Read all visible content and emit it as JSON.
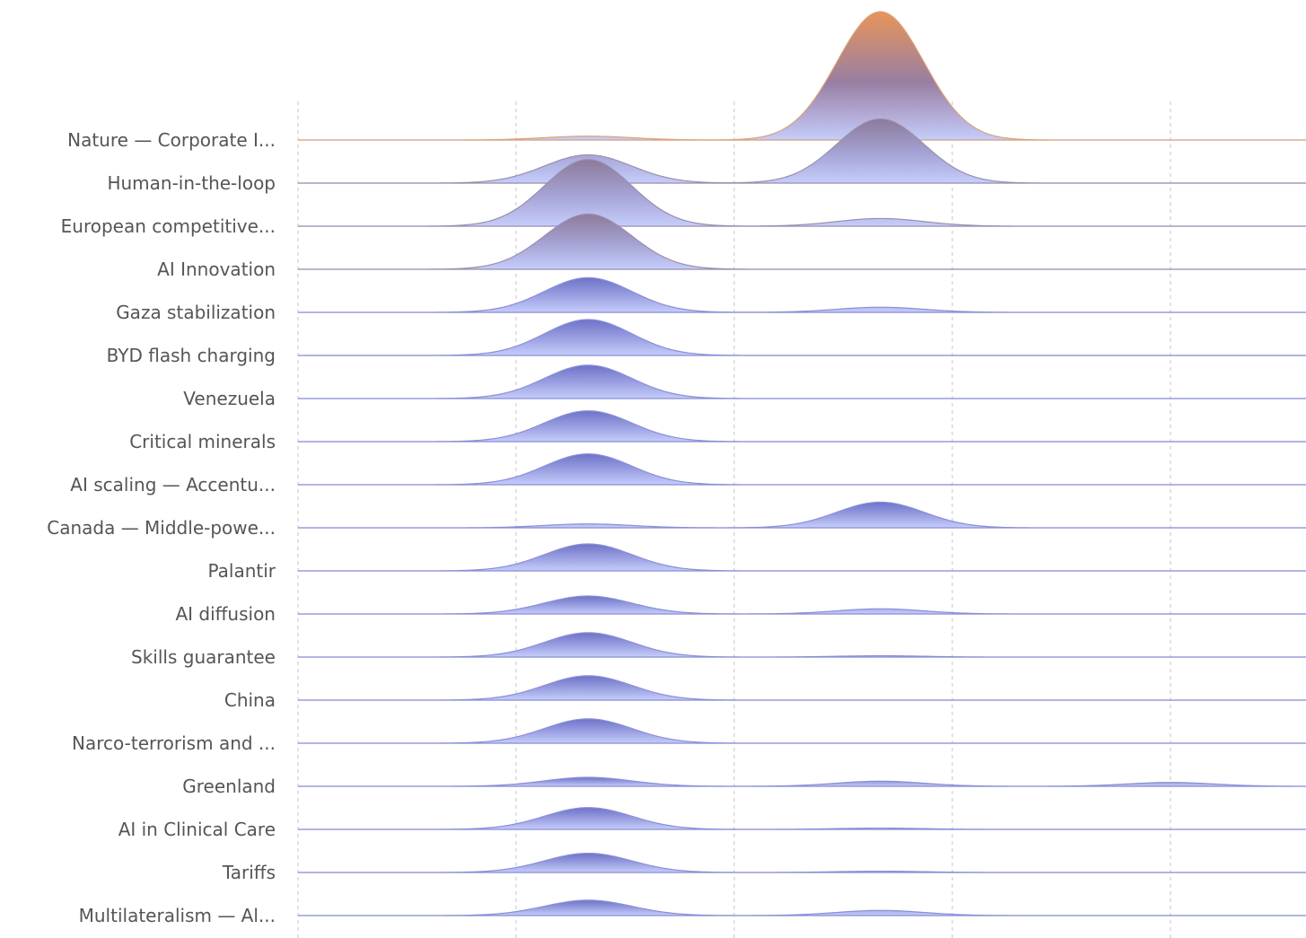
{
  "chart_data": {
    "type": "ridgeline",
    "title": "",
    "xlabel": "",
    "ylabel": "",
    "grid": true,
    "colors": {
      "low": "#c5cdfb",
      "mid": "#6e72c8",
      "high": "#e8955a",
      "baseline": "#cfd4e4",
      "label": "#555555"
    },
    "rows": [
      {
        "label": "Nature — Corporate I...",
        "peaks": [
          {
            "center": 1.33,
            "amplitude": 0.03
          },
          {
            "center": 2.67,
            "amplitude": 1.0
          }
        ]
      },
      {
        "label": "Human-in-the-loop",
        "peaks": [
          {
            "center": 1.33,
            "amplitude": 0.22
          },
          {
            "center": 2.67,
            "amplitude": 0.5
          }
        ]
      },
      {
        "label": "European competitive...",
        "peaks": [
          {
            "center": 1.33,
            "amplitude": 0.52
          },
          {
            "center": 2.67,
            "amplitude": 0.06
          }
        ]
      },
      {
        "label": "AI Innovation",
        "peaks": [
          {
            "center": 1.33,
            "amplitude": 0.43
          }
        ]
      },
      {
        "label": "Gaza stabilization",
        "peaks": [
          {
            "center": 1.33,
            "amplitude": 0.27
          },
          {
            "center": 2.67,
            "amplitude": 0.04
          }
        ]
      },
      {
        "label": "BYD flash charging",
        "peaks": [
          {
            "center": 1.33,
            "amplitude": 0.28
          }
        ]
      },
      {
        "label": "Venezuela",
        "peaks": [
          {
            "center": 1.33,
            "amplitude": 0.26
          }
        ]
      },
      {
        "label": "Critical minerals",
        "peaks": [
          {
            "center": 1.33,
            "amplitude": 0.24
          }
        ]
      },
      {
        "label": "AI scaling — Accentu...",
        "peaks": [
          {
            "center": 1.33,
            "amplitude": 0.24
          }
        ]
      },
      {
        "label": "Canada — Middle-powe...",
        "peaks": [
          {
            "center": 1.33,
            "amplitude": 0.03
          },
          {
            "center": 2.67,
            "amplitude": 0.2
          }
        ]
      },
      {
        "label": "Palantir",
        "peaks": [
          {
            "center": 1.33,
            "amplitude": 0.21
          }
        ]
      },
      {
        "label": "AI diffusion",
        "peaks": [
          {
            "center": 1.33,
            "amplitude": 0.14
          },
          {
            "center": 2.67,
            "amplitude": 0.04
          }
        ]
      },
      {
        "label": "Skills guarantee",
        "peaks": [
          {
            "center": 1.33,
            "amplitude": 0.19
          },
          {
            "center": 2.67,
            "amplitude": 0.01
          }
        ]
      },
      {
        "label": "China",
        "peaks": [
          {
            "center": 1.33,
            "amplitude": 0.19
          }
        ]
      },
      {
        "label": "Narco-terrorism and ...",
        "peaks": [
          {
            "center": 1.33,
            "amplitude": 0.19
          }
        ]
      },
      {
        "label": "Greenland",
        "peaks": [
          {
            "center": 1.33,
            "amplitude": 0.07
          },
          {
            "center": 2.67,
            "amplitude": 0.04
          },
          {
            "center": 4.0,
            "amplitude": 0.03
          }
        ]
      },
      {
        "label": "AI in Clinical Care",
        "peaks": [
          {
            "center": 1.33,
            "amplitude": 0.17
          },
          {
            "center": 2.67,
            "amplitude": 0.01
          }
        ]
      },
      {
        "label": "Tariffs",
        "peaks": [
          {
            "center": 1.33,
            "amplitude": 0.15
          },
          {
            "center": 2.67,
            "amplitude": 0.01
          }
        ]
      },
      {
        "label": "Multilateralism — Al...",
        "peaks": [
          {
            "center": 1.33,
            "amplitude": 0.12
          },
          {
            "center": 2.67,
            "amplitude": 0.04
          }
        ]
      }
    ],
    "xlim": [
      0,
      4.6
    ],
    "x_gridlines": [
      0,
      1,
      2,
      3,
      4
    ]
  }
}
